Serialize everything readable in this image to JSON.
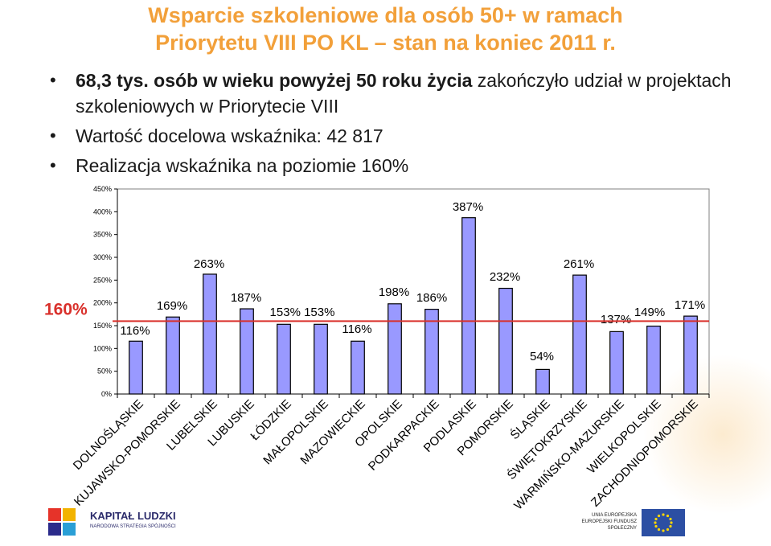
{
  "title": {
    "line1": "Wsparcie szkoleniowe dla osób 50+ w ramach",
    "line2": "Priorytetu VIII PO KL – stan na koniec 2011 r."
  },
  "bullets": [
    {
      "bold": "68,3 tys. osób w wieku powyżej 50 roku życia",
      "rest": " zakończyło udział w projektach szkoleniowych w Priorytecie VIII"
    },
    {
      "bold": "",
      "rest": "Wartość docelowa wskaźnika: 42 817"
    },
    {
      "bold": "",
      "rest": "Realizacja wskaźnika na poziomie 160%"
    }
  ],
  "bullet_glyph": "•",
  "chart_data": {
    "type": "bar",
    "categories": [
      "DOLNOŚLĄSKIE",
      "KUJAWSKO-POMORSKIE",
      "LUBELSKIE",
      "LUBUSKIE",
      "ŁÓDZKIE",
      "MAŁOPOLSKIE",
      "MAZOWIECKIE",
      "OPOLSKIE",
      "PODKARPACKIE",
      "PODLASKIE",
      "POMORSKIE",
      "ŚLĄSKIE",
      "ŚWIĘTOKRZYSKIE",
      "WARMIŃSKO-MAZURSKIE",
      "WIELKOPOLSKIE",
      "ZACHODNIOPOMORSKIE"
    ],
    "values": [
      116,
      169,
      263,
      187,
      153,
      153,
      116,
      198,
      186,
      387,
      232,
      54,
      261,
      137,
      149,
      171
    ],
    "value_labels": [
      "116%",
      "169%",
      "263%",
      "187%",
      "153% 153%",
      "",
      "116%",
      "198%",
      "186%",
      "387%",
      "232%",
      "54%",
      "261%",
      "137%",
      "149%",
      "171%"
    ],
    "y_ticks": [
      "0%",
      "50%",
      "100%",
      "150%",
      "200%",
      "250%",
      "300%",
      "350%",
      "400%",
      "450%"
    ],
    "ylim": [
      0,
      450
    ],
    "reference_line": {
      "value": 160,
      "label": "160%",
      "color": "#d9302b"
    },
    "bar_color": "#9999ff",
    "bar_stroke": "#000000",
    "grid": false,
    "legend": "none"
  },
  "logos": {
    "left_title": "KAPITAŁ LUDZKI",
    "left_sub": "NARODOWA STRATEGIA SPÓJNOŚCI",
    "right_text": "UNIA EUROPEJSKA EUROPEJSKI FUNDUSZ SPOŁECZNY"
  }
}
